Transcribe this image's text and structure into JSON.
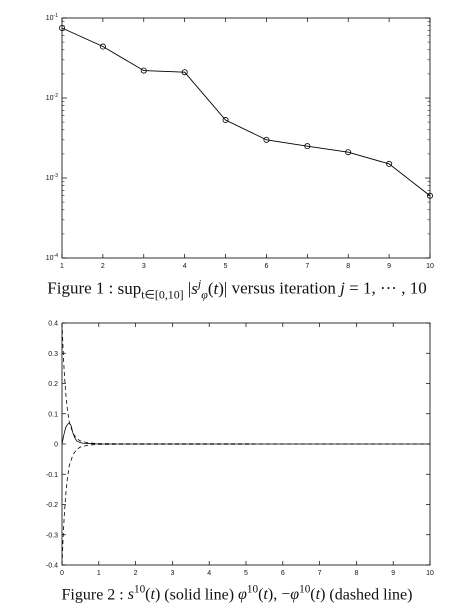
{
  "figure1": {
    "caption": {
      "label": "Figure 1 : ",
      "math": "sup_{t∈[0,10]} |s^j_φ(t)|",
      "rest": " versus iteration j = 1, ··· , 10"
    },
    "chart_data": {
      "type": "line",
      "yscale": "log",
      "x": [
        1,
        2,
        3,
        4,
        5,
        6,
        7,
        8,
        9,
        10
      ],
      "series": [
        {
          "values": [
            0.075,
            0.044,
            0.022,
            0.021,
            0.0053,
            0.003,
            0.0025,
            0.0021,
            0.0015,
            0.0006
          ],
          "marker": "circle",
          "style": "solid"
        }
      ],
      "xlim": [
        1,
        10
      ],
      "ylim": [
        0.0001,
        0.1
      ],
      "xticks": [
        "1",
        "2",
        "3",
        "4",
        "5",
        "6",
        "7",
        "8",
        "9",
        "10"
      ],
      "yticks": [
        {
          "base": "10",
          "exp": "-4"
        },
        {
          "base": "10",
          "exp": "-3"
        },
        {
          "base": "10",
          "exp": "-2"
        },
        {
          "base": "10",
          "exp": "-1"
        }
      ],
      "grid": false,
      "color": "#000000"
    }
  },
  "figure2": {
    "caption": {
      "label": "Figure 2 : ",
      "s_term": "s^10(t)",
      "solid": " (solid line) ",
      "phi_term": "φ^10(t), −φ^10(t)",
      "dashed": " (dashed line)"
    },
    "chart_data": {
      "type": "line",
      "xlim": [
        0,
        10
      ],
      "ylim": [
        -0.4,
        0.4
      ],
      "xticks": [
        "0",
        "1",
        "2",
        "3",
        "4",
        "5",
        "6",
        "7",
        "8",
        "9",
        "10"
      ],
      "yticks": [
        "-0.4",
        "-0.3",
        "-0.2",
        "-0.1",
        "0",
        "0.1",
        "0.2",
        "0.3",
        "0.4"
      ],
      "series": [
        {
          "style": "solid",
          "x": [
            0,
            0.05,
            0.1,
            0.15,
            0.2,
            0.25,
            0.3,
            0.35,
            0.4,
            0.5,
            0.6,
            0.8,
            1.0,
            10
          ],
          "values": [
            0,
            0.03,
            0.055,
            0.065,
            0.07,
            0.06,
            0.035,
            0.02,
            0.01,
            0.004,
            0.002,
            0.001,
            0,
            0
          ]
        },
        {
          "style": "dashed",
          "x": [
            0,
            0.03,
            0.06,
            0.1,
            0.15,
            0.2,
            0.3,
            0.4,
            0.5,
            0.7,
            1.0,
            10
          ],
          "values": [
            0.4,
            0.31,
            0.24,
            0.17,
            0.11,
            0.07,
            0.035,
            0.018,
            0.01,
            0.004,
            0.001,
            0
          ]
        },
        {
          "style": "dashed",
          "x": [
            0,
            0.03,
            0.06,
            0.1,
            0.15,
            0.2,
            0.3,
            0.4,
            0.5,
            0.7,
            1.0,
            10
          ],
          "values": [
            -0.4,
            -0.31,
            -0.24,
            -0.17,
            -0.11,
            -0.07,
            -0.035,
            -0.018,
            -0.01,
            -0.004,
            -0.001,
            0
          ]
        }
      ],
      "grid": false,
      "color": "#000000"
    }
  }
}
